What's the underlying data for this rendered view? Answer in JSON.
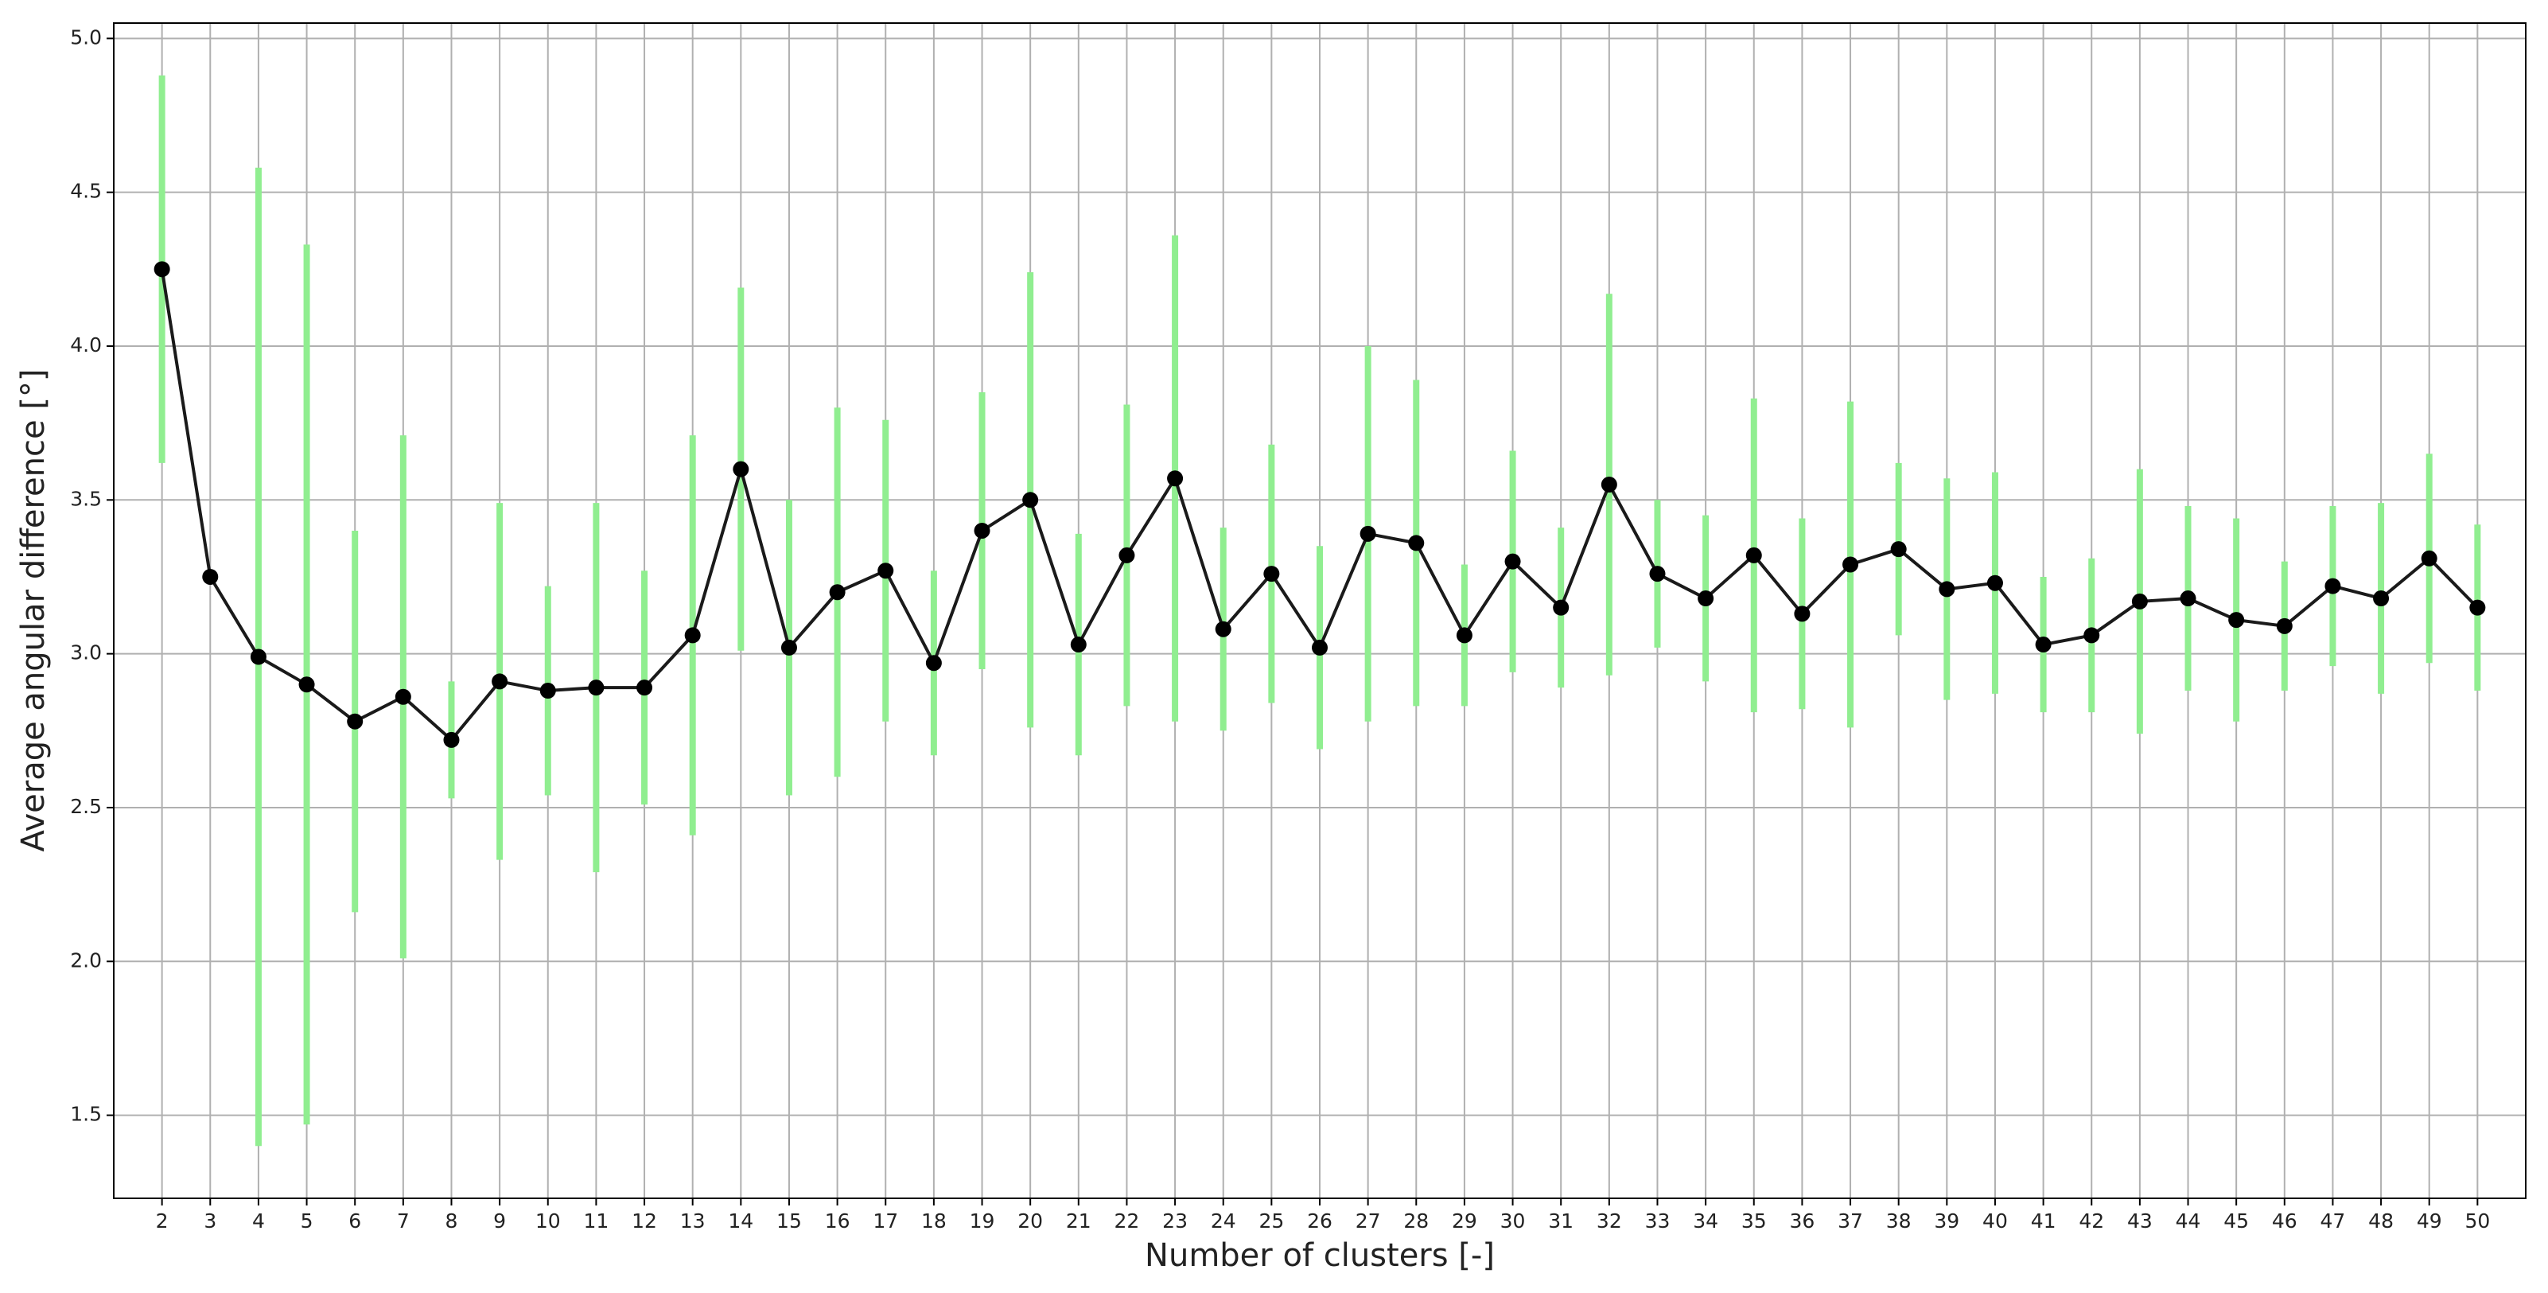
{
  "chart_data": {
    "type": "errorbar-line",
    "xlabel": "Number of clusters [-]",
    "ylabel": "Average angular difference [°]",
    "x": [
      2,
      3,
      4,
      5,
      6,
      7,
      8,
      9,
      10,
      11,
      12,
      13,
      14,
      15,
      16,
      17,
      18,
      19,
      20,
      21,
      22,
      23,
      24,
      25,
      26,
      27,
      28,
      29,
      30,
      31,
      32,
      33,
      34,
      35,
      36,
      37,
      38,
      39,
      40,
      41,
      42,
      43,
      44,
      45,
      46,
      47,
      48,
      49,
      50
    ],
    "values": [
      4.25,
      3.25,
      2.99,
      2.9,
      2.78,
      2.86,
      2.72,
      2.91,
      2.88,
      2.89,
      2.89,
      3.06,
      3.6,
      3.02,
      3.2,
      3.27,
      2.97,
      3.4,
      3.5,
      3.03,
      3.32,
      3.57,
      3.08,
      3.26,
      3.02,
      3.39,
      3.36,
      3.06,
      3.3,
      3.15,
      3.55,
      3.26,
      3.18,
      3.32,
      3.13,
      3.29,
      3.34,
      3.21,
      3.23,
      3.03,
      3.06,
      3.17,
      3.18,
      3.11,
      3.09,
      3.22,
      3.18,
      3.31,
      3.15
    ],
    "errors": [
      0.63,
      0,
      1.59,
      1.43,
      0.62,
      0.85,
      0.19,
      0.58,
      0.34,
      0.6,
      0.38,
      0.65,
      0.59,
      0.48,
      0.6,
      0.49,
      0.3,
      0.45,
      0.74,
      0.36,
      0.49,
      0.79,
      0.33,
      0.42,
      0.33,
      0.61,
      0.53,
      0.23,
      0.36,
      0.26,
      0.62,
      0.24,
      0.27,
      0.51,
      0.31,
      0.53,
      0.28,
      0.36,
      0.36,
      0.22,
      0.25,
      0.43,
      0.3,
      0.33,
      0.21,
      0.26,
      0.31,
      0.34,
      0.27
    ],
    "line_color": "#1a1a1a",
    "marker_color": "#000000",
    "error_color": "#90ee90",
    "xlim": [
      1,
      51
    ],
    "ylim": [
      1.23,
      5.05
    ],
    "xticks": [
      2,
      3,
      4,
      5,
      6,
      7,
      8,
      9,
      10,
      11,
      12,
      13,
      14,
      15,
      16,
      17,
      18,
      19,
      20,
      21,
      22,
      23,
      24,
      25,
      26,
      27,
      28,
      29,
      30,
      31,
      32,
      33,
      34,
      35,
      36,
      37,
      38,
      39,
      40,
      41,
      42,
      43,
      44,
      45,
      46,
      47,
      48,
      49,
      50
    ],
    "yticks": [
      1.5,
      {
        "value": 2,
        "label": "2.0"
      },
      2.5,
      {
        "value": 3,
        "label": "3.0"
      },
      3.5,
      {
        "value": 4,
        "label": "4.0"
      },
      4.5,
      {
        "value": 5,
        "label": "5.0"
      }
    ],
    "grid": true
  }
}
